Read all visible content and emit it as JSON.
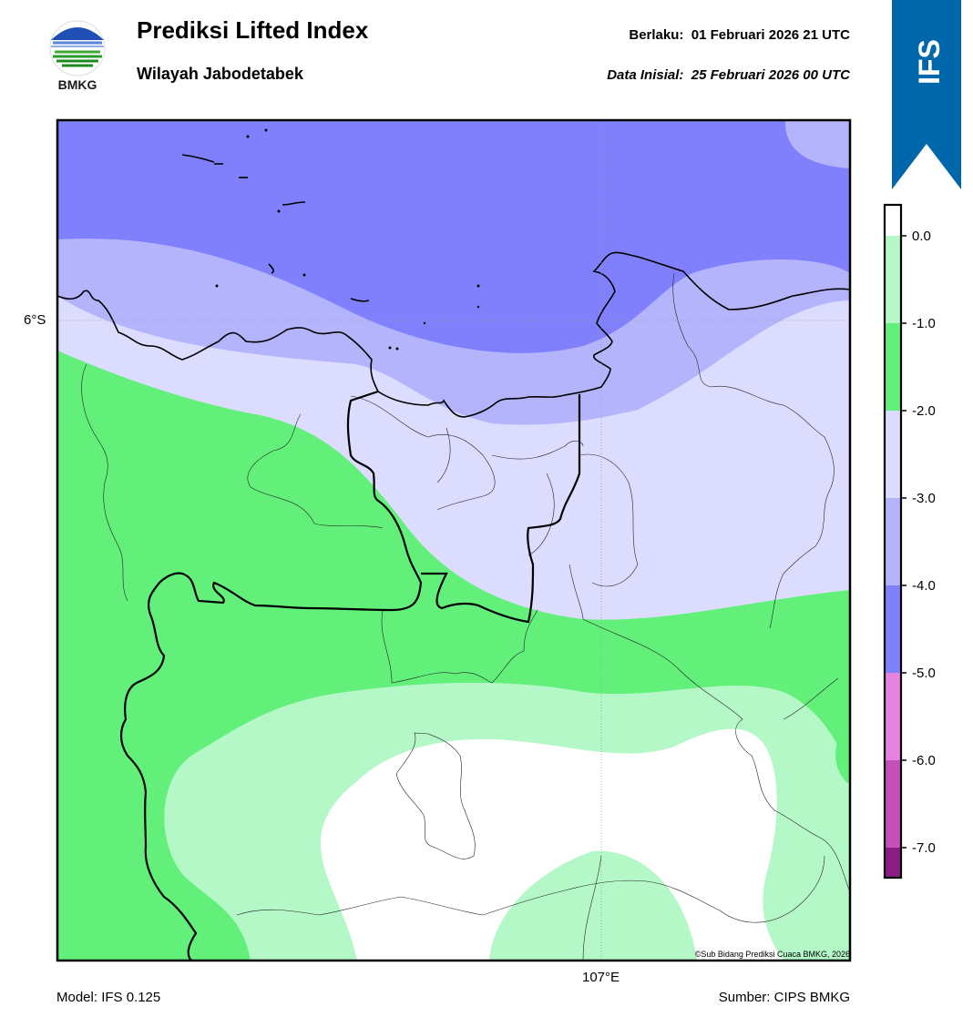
{
  "header": {
    "logo_text": "BMKG",
    "title": "Prediksi Lifted Index",
    "subtitle": "Wilayah Jabodetabek",
    "valid_label": "Berlaku:",
    "valid_value": "01 Februari 2026 21 UTC",
    "init_label": "Data Inisial:",
    "init_value": "25 Februari 2026 00 UTC"
  },
  "ribbon": {
    "text": "IFS",
    "color": "#0068aa"
  },
  "map": {
    "lat_label": "6°S",
    "lon_label": "107°E",
    "copyright": "©Sub Bidang Prediksi Cuaca BMKG, 2026"
  },
  "colorbar": {
    "levels": [
      {
        "label": "0.0",
        "color": "#ffffff"
      },
      {
        "label": "-1.0",
        "color": "#b4f8c8"
      },
      {
        "label": "-2.0",
        "color": "#62f07a"
      },
      {
        "label": "-3.0",
        "color": "#dcdcfe"
      },
      {
        "label": "-4.0",
        "color": "#b4b4fc"
      },
      {
        "label": "-5.0",
        "color": "#8080fc"
      },
      {
        "label": "-6.0",
        "color": "#e682e0"
      },
      {
        "label": "-7.0",
        "color": "#c450b8"
      },
      {
        "bottom_color": "#8a1e84"
      }
    ]
  },
  "footer": {
    "model": "Model: IFS 0.125",
    "source": "Sumber: CIPS BMKG"
  }
}
